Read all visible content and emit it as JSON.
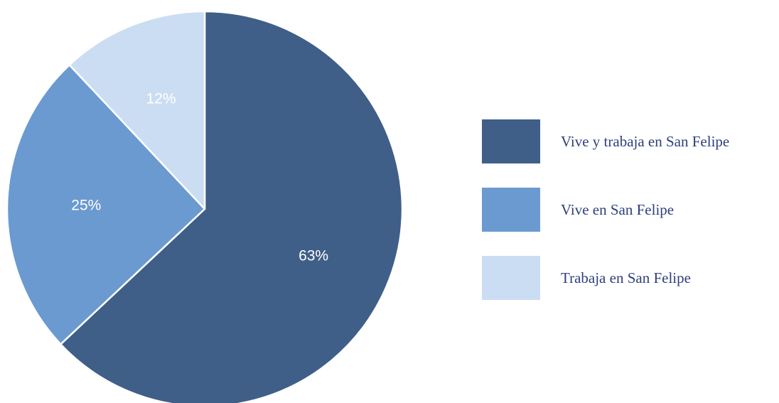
{
  "chart_data": {
    "type": "pie",
    "title": "",
    "slices": [
      {
        "label": "Vive y trabaja en San Felipe",
        "value": 63,
        "display": "63%",
        "color": "#3f5f88"
      },
      {
        "label": "Vive en San Felipe",
        "value": 25,
        "display": "25%",
        "color": "#6b9ad0"
      },
      {
        "label": "Trabaja en San Felipe",
        "value": 12,
        "display": "12%",
        "color": "#cbddf3"
      }
    ],
    "start_angle": "12 o'clock",
    "direction": "clockwise",
    "legend": {
      "position": "right",
      "text_color": "#2e3f7c"
    },
    "slice_label_color": "#ffffff"
  }
}
